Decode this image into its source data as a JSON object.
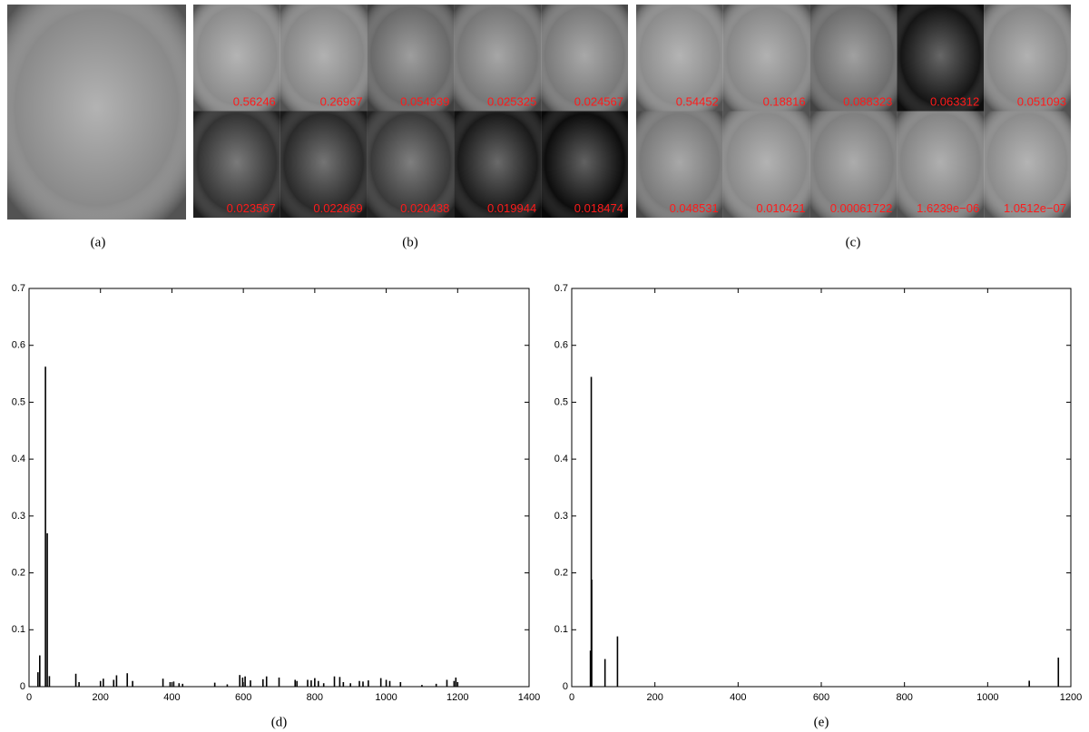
{
  "panels": {
    "a": {
      "caption": "(a)"
    },
    "b": {
      "caption": "(b)",
      "coefficients": [
        "0.56246",
        "0.26967",
        "0.054939",
        "0.025325",
        "0.024567",
        "0.023567",
        "0.022669",
        "0.020438",
        "0.019944",
        "0.018474"
      ]
    },
    "c": {
      "caption": "(c)",
      "coefficients": [
        "0.54452",
        "0.18816",
        "0.088323",
        "0.063312",
        "0.051093",
        "0.048531",
        "0.010421",
        "0.00061722",
        "1.6239e−06",
        "1.0512e−07"
      ]
    }
  },
  "chart_data": [
    {
      "type": "stem",
      "caption": "(d)",
      "color": "#000000",
      "x": [
        25,
        30,
        46,
        51,
        57,
        131,
        140,
        200,
        208,
        237,
        245,
        275,
        290,
        375,
        395,
        405,
        420,
        430,
        520,
        555,
        590,
        598,
        605,
        620,
        655,
        665,
        700,
        745,
        750,
        780,
        790,
        800,
        810,
        825,
        855,
        870,
        880,
        900,
        925,
        935,
        950,
        985,
        1000,
        1010,
        1040,
        1100,
        1140,
        1170,
        1190,
        1195,
        1200
      ],
      "values": [
        0.025325,
        0.054939,
        0.56246,
        0.26967,
        0.018474,
        0.022669,
        0.008,
        0.01,
        0.014,
        0.012,
        0.019944,
        0.023567,
        0.01,
        0.014,
        0.008,
        0.009,
        0.006,
        0.005,
        0.007,
        0.004,
        0.020438,
        0.016,
        0.018,
        0.011,
        0.013,
        0.018,
        0.016,
        0.012,
        0.01,
        0.012,
        0.011,
        0.015,
        0.01,
        0.006,
        0.018,
        0.017,
        0.008,
        0.006,
        0.01,
        0.009,
        0.011,
        0.015,
        0.012,
        0.01,
        0.008,
        0.003,
        0.005,
        0.012,
        0.01,
        0.016,
        0.008
      ],
      "xlim": [
        0,
        1400
      ],
      "xticks": [
        0,
        200,
        400,
        600,
        800,
        1000,
        1200,
        1400
      ],
      "ylim": [
        0,
        0.7
      ],
      "yticks": [
        0,
        0.1,
        0.2,
        0.3,
        0.4,
        0.5,
        0.6,
        0.7
      ]
    },
    {
      "type": "stem",
      "caption": "(e)",
      "color": "#000000",
      "x": [
        45,
        47,
        48,
        80,
        110,
        1100,
        1170
      ],
      "values": [
        0.063312,
        0.54452,
        0.18816,
        0.048531,
        0.088323,
        0.010421,
        0.051093
      ],
      "xlim": [
        0,
        1200
      ],
      "xticks": [
        0,
        200,
        400,
        600,
        800,
        1000,
        1200
      ],
      "ylim": [
        0,
        0.7
      ],
      "yticks": [
        0,
        0.1,
        0.2,
        0.3,
        0.4,
        0.5,
        0.6,
        0.7
      ]
    }
  ]
}
